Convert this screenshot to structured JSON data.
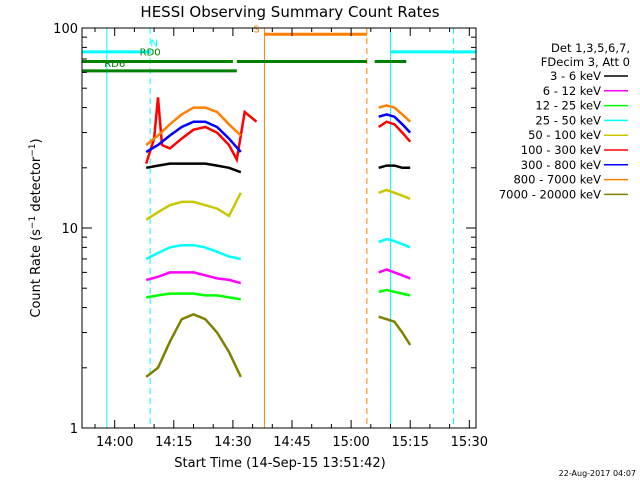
{
  "chart_data": {
    "type": "line",
    "title": "HESSI Observing Summary Count Rates",
    "xlabel": "Start Time (14-Sep-15 13:51:42)",
    "ylabel": "Count Rate (s⁻¹ detector⁻¹)",
    "ylabel_main": "Count Rate (s",
    "ylabel_sup1": "−1",
    "ylabel_mid": " detector",
    "ylabel_sup2": "−1",
    "ylabel_end": ")",
    "y_scale": "log",
    "ylim": [
      1,
      100
    ],
    "xlim": [
      "13:51:42",
      "15:31:42"
    ],
    "x_ticks": [
      "14:00",
      "14:15",
      "14:30",
      "14:45",
      "15:00",
      "15:15",
      "15:30"
    ],
    "y_ticks": [
      "1",
      "10",
      "100"
    ],
    "legend_position": "top-right",
    "legend_header": [
      "Det 1,3,5,6,7,",
      "FDecim 3, Att 0"
    ],
    "timestamp": "22-Aug-2017 04:07",
    "series": [
      {
        "name": "3 - 6 keV",
        "color": "#000000",
        "segments": [
          {
            "x": [
              "14:08",
              "14:11",
              "14:14",
              "14:17",
              "14:20",
              "14:23",
              "14:26",
              "14:29",
              "14:32"
            ],
            "y": [
              20,
              20.5,
              21,
              21,
              21,
              21,
              20.5,
              20,
              19
            ]
          },
          {
            "x": [
              "15:07",
              "15:09",
              "15:11",
              "15:13",
              "15:15"
            ],
            "y": [
              20,
              20.5,
              20.5,
              20,
              20
            ]
          }
        ]
      },
      {
        "name": "6 - 12 keV",
        "color": "#ff00ff",
        "segments": [
          {
            "x": [
              "14:08",
              "14:11",
              "14:14",
              "14:17",
              "14:20",
              "14:23",
              "14:26",
              "14:29",
              "14:32"
            ],
            "y": [
              5.5,
              5.7,
              6,
              6,
              6,
              5.8,
              5.6,
              5.5,
              5.3
            ]
          },
          {
            "x": [
              "15:07",
              "15:09",
              "15:11",
              "15:13",
              "15:15"
            ],
            "y": [
              6,
              6.2,
              6,
              5.8,
              5.6
            ]
          }
        ]
      },
      {
        "name": "12 - 25 keV",
        "color": "#00ff00",
        "segments": [
          {
            "x": [
              "14:08",
              "14:11",
              "14:14",
              "14:17",
              "14:20",
              "14:23",
              "14:26",
              "14:29",
              "14:32"
            ],
            "y": [
              4.5,
              4.6,
              4.7,
              4.7,
              4.7,
              4.6,
              4.6,
              4.5,
              4.4
            ]
          },
          {
            "x": [
              "15:07",
              "15:09",
              "15:11",
              "15:13",
              "15:15"
            ],
            "y": [
              4.8,
              4.9,
              4.8,
              4.7,
              4.6
            ]
          }
        ]
      },
      {
        "name": "25 - 50 keV",
        "color": "#00ffff",
        "segments": [
          {
            "x": [
              "14:08",
              "14:11",
              "14:14",
              "14:17",
              "14:20",
              "14:23",
              "14:26",
              "14:29",
              "14:32"
            ],
            "y": [
              7,
              7.5,
              8,
              8.2,
              8.2,
              8,
              7.6,
              7.2,
              7
            ]
          },
          {
            "x": [
              "15:07",
              "15:09",
              "15:11",
              "15:13",
              "15:15"
            ],
            "y": [
              8.5,
              8.8,
              8.6,
              8.3,
              8
            ]
          }
        ]
      },
      {
        "name": "50 - 100 keV",
        "color": "#c8c800",
        "segments": [
          {
            "x": [
              "14:08",
              "14:11",
              "14:14",
              "14:17",
              "14:20",
              "14:23",
              "14:26",
              "14:29",
              "14:32"
            ],
            "y": [
              11,
              12,
              13,
              13.5,
              13.5,
              13,
              12.5,
              11.5,
              15
            ]
          },
          {
            "x": [
              "15:07",
              "15:09",
              "15:11",
              "15:13",
              "15:15"
            ],
            "y": [
              15,
              15.5,
              15,
              14.5,
              14
            ]
          }
        ]
      },
      {
        "name": "100 - 300 keV",
        "color": "#ff0000",
        "segments": [
          {
            "x": [
              "14:08",
              "14:10",
              "14:11",
              "14:12",
              "14:14",
              "14:17",
              "14:20",
              "14:23",
              "14:26",
              "14:29",
              "14:31",
              "14:33",
              "14:36"
            ],
            "y": [
              21,
              28,
              45,
              26,
              25,
              28,
              31,
              32,
              30,
              26,
              22,
              38,
              34
            ]
          },
          {
            "x": [
              "15:07",
              "15:09",
              "15:11",
              "15:13",
              "15:15"
            ],
            "y": [
              32,
              34,
              33,
              30,
              27
            ]
          }
        ]
      },
      {
        "name": "300 - 800 keV",
        "color": "#0000ff",
        "segments": [
          {
            "x": [
              "14:08",
              "14:11",
              "14:14",
              "14:17",
              "14:20",
              "14:23",
              "14:26",
              "14:29",
              "14:32"
            ],
            "y": [
              24,
              26,
              29,
              32,
              34,
              34,
              32,
              28,
              24
            ]
          },
          {
            "x": [
              "15:07",
              "15:09",
              "15:11",
              "15:13",
              "15:15"
            ],
            "y": [
              36,
              37,
              36,
              33,
              30
            ]
          }
        ]
      },
      {
        "name": "800 - 7000 keV",
        "color": "#ff8000",
        "segments": [
          {
            "x": [
              "14:08",
              "14:11",
              "14:14",
              "14:17",
              "14:20",
              "14:23",
              "14:26",
              "14:29",
              "14:32"
            ],
            "y": [
              26,
              29,
              33,
              37,
              40,
              40,
              38,
              33,
              29
            ]
          },
          {
            "x": [
              "15:07",
              "15:09",
              "15:11",
              "15:13",
              "15:15"
            ],
            "y": [
              40,
              41,
              40,
              37,
              34
            ]
          }
        ]
      },
      {
        "name": "7000 - 20000 keV",
        "color": "#808000",
        "segments": [
          {
            "x": [
              "14:08",
              "14:11",
              "14:14",
              "14:17",
              "14:20",
              "14:23",
              "14:26",
              "14:29",
              "14:32"
            ],
            "y": [
              1.8,
              2,
              2.7,
              3.5,
              3.7,
              3.5,
              3,
              2.4,
              1.8
            ]
          },
          {
            "x": [
              "15:07",
              "15:09",
              "15:11",
              "15:13",
              "15:15"
            ],
            "y": [
              3.6,
              3.5,
              3.4,
              3,
              2.6
            ]
          }
        ]
      }
    ],
    "markers": {
      "vlines": [
        {
          "x": "13:58",
          "color": "#00ffff",
          "dashed": false
        },
        {
          "x": "14:09",
          "color": "#00ffff",
          "dashed": true
        },
        {
          "x": "14:38",
          "color": "#ff8000",
          "dashed": false
        },
        {
          "x": "15:04",
          "color": "#ff8000",
          "dashed": true
        },
        {
          "x": "15:10",
          "color": "#00ffff",
          "dashed": false
        },
        {
          "x": "15:26",
          "color": "#00ffff",
          "dashed": true
        }
      ],
      "bars": [
        {
          "x": [
            "13:51:42",
            "14:09"
          ],
          "y": 76,
          "color": "#00ffff"
        },
        {
          "x": [
            "15:10",
            "15:31:42"
          ],
          "y": 76,
          "color": "#00ffff"
        },
        {
          "x": [
            "14:38",
            "15:04"
          ],
          "y": 93,
          "color": "#ff8000"
        },
        {
          "x": [
            "13:51:42",
            "14:30"
          ],
          "y": 68,
          "color": "#008000"
        },
        {
          "x": [
            "15:06",
            "15:14"
          ],
          "y": 68,
          "color": "#008000"
        },
        {
          "x": [
            "13:51:42",
            "14:31"
          ],
          "y": 61,
          "color": "#008000"
        },
        {
          "x": [
            "14:31",
            "15:04"
          ],
          "y": 68,
          "color": "#008000"
        }
      ],
      "labels": [
        {
          "text": "N",
          "x": "14:10",
          "y": 81,
          "color": "#00ffff"
        },
        {
          "text": "S",
          "x": "14:36",
          "y": 95,
          "color": "#ff8000"
        },
        {
          "text": "RD0",
          "x": "14:09",
          "y": 73,
          "color": "#008000"
        },
        {
          "text": "RD6",
          "x": "14:00",
          "y": 64,
          "color": "#008000"
        }
      ]
    }
  }
}
